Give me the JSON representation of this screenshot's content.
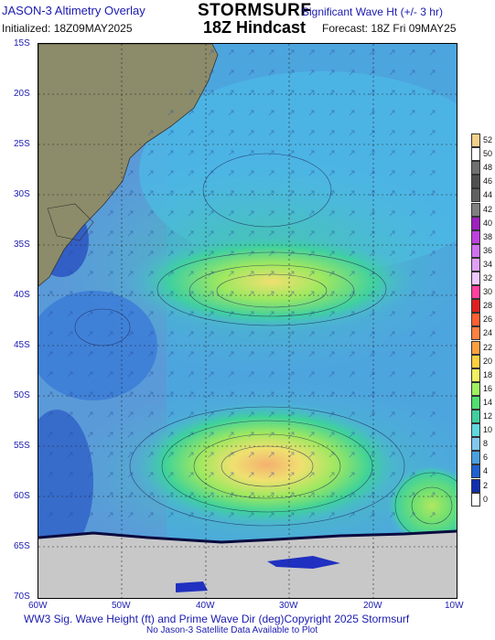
{
  "header": {
    "left_title": "JASON-3 Altimetry Overlay",
    "initialized": "Initialized: 18Z09MAY2025",
    "brand": "STORMSURF",
    "hindcast": "18Z Hindcast",
    "right_title": "Significant Wave Ht (+/- 3 hr)",
    "forecast": "Forecast: 18Z Fri 09MAY25"
  },
  "map": {
    "lat_labels": [
      "15S",
      "20S",
      "25S",
      "30S",
      "35S",
      "40S",
      "45S",
      "50S",
      "55S",
      "60S",
      "65S",
      "70S"
    ],
    "lon_labels": [
      "60W",
      "50W",
      "40W",
      "30W",
      "20W",
      "10W"
    ],
    "colors": {
      "land": "#8c8c6a",
      "ice": "#c8c8c8",
      "low_waves": "#2244cc",
      "mid_waves": "#4fa3e0",
      "high_waves": "#3fd08a",
      "peak_waves": "#f0d060"
    }
  },
  "legend": {
    "values": [
      "52",
      "50",
      "48",
      "46",
      "44",
      "42",
      "40",
      "38",
      "36",
      "34",
      "32",
      "30",
      "28",
      "26",
      "24",
      "22",
      "20",
      "18",
      "16",
      "14",
      "12",
      "10",
      "8",
      "6",
      "4",
      "2",
      "0"
    ],
    "colors": [
      "#f2d08a",
      "#ffffff",
      "#707070",
      "#505050",
      "#606060",
      "#808080",
      "#a020c0",
      "#c040e0",
      "#d070f0",
      "#e0a0f8",
      "#f0c8ff",
      "#ff40a0",
      "#e02020",
      "#ff6030",
      "#ff8040",
      "#ffa040",
      "#ffd040",
      "#f0f060",
      "#a0f060",
      "#50e070",
      "#40d0a0",
      "#60d8e0",
      "#80c8f0",
      "#4aa0e0",
      "#2060d0",
      "#1030b0",
      "#ffffff"
    ]
  },
  "footer": {
    "line1": "WW3 Sig. Wave Height (ft) and Prime Wave Dir (deg)Copyright 2025 Stormsurf",
    "line2": "No Jason-3 Satellite Data Available to Plot"
  }
}
